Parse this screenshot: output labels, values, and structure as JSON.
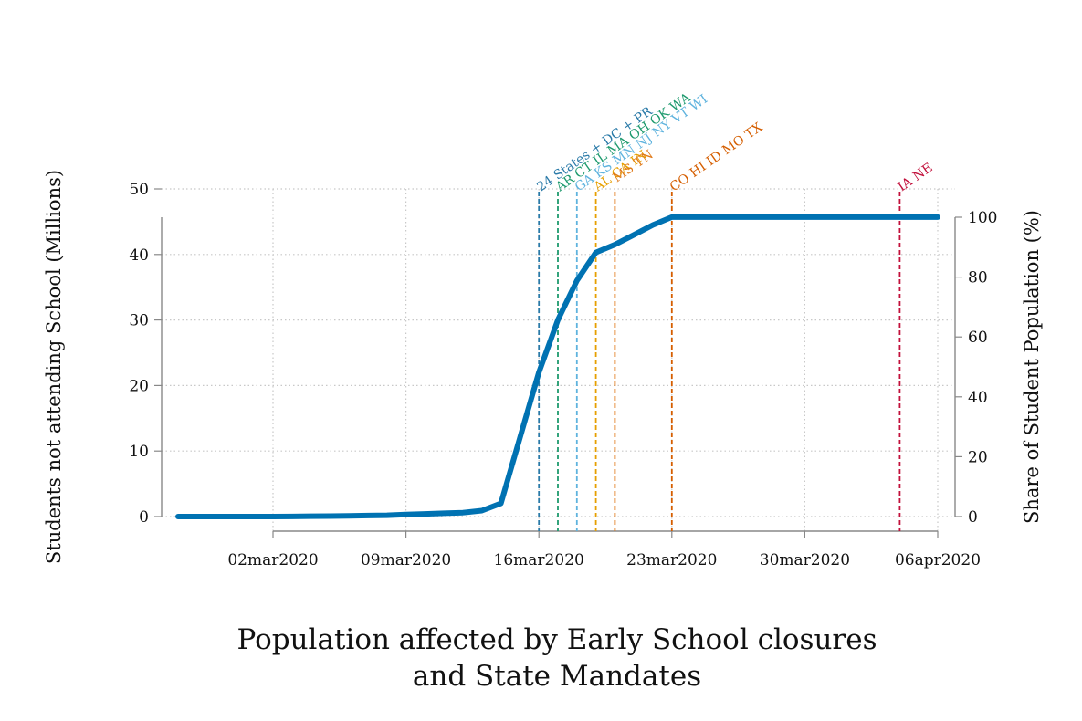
{
  "chart_data": {
    "type": "line",
    "title": "",
    "caption_lines": [
      "Population affected by Early School closures",
      "and State Mandates"
    ],
    "xlabel": "",
    "ylabel": "Students not attending School (Millions)",
    "y2label": "Share of Student Population (%)",
    "x_ticks": [
      "02mar2020",
      "09mar2020",
      "16mar2020",
      "23mar2020",
      "30mar2020",
      "06apr2020"
    ],
    "xlim": [
      "2020-02-26",
      "2020-04-06"
    ],
    "ylim": [
      0,
      50
    ],
    "y_ticks": [
      0,
      10,
      20,
      30,
      40,
      50
    ],
    "y2lim": [
      0,
      100
    ],
    "y2_ticks": [
      0,
      20,
      40,
      60,
      80,
      100
    ],
    "grid": true,
    "series": [
      {
        "color": "#0072b2",
        "x": [
          "2020-02-26",
          "2020-02-27",
          "2020-02-28",
          "2020-02-29",
          "2020-03-01",
          "2020-03-02",
          "2020-03-03",
          "2020-03-04",
          "2020-03-05",
          "2020-03-06",
          "2020-03-07",
          "2020-03-08",
          "2020-03-09",
          "2020-03-10",
          "2020-03-11",
          "2020-03-12",
          "2020-03-13",
          "2020-03-14",
          "2020-03-15",
          "2020-03-16",
          "2020-03-17",
          "2020-03-18",
          "2020-03-19",
          "2020-03-20",
          "2020-03-21",
          "2020-03-22",
          "2020-03-23",
          "2020-03-24",
          "2020-03-25",
          "2020-03-26",
          "2020-03-27",
          "2020-03-28",
          "2020-03-29",
          "2020-03-30",
          "2020-03-31",
          "2020-04-01",
          "2020-04-02",
          "2020-04-03",
          "2020-04-04",
          "2020-04-05",
          "2020-04-06"
        ],
        "values": [
          0,
          0,
          0,
          0,
          0,
          0,
          0.02,
          0.05,
          0.07,
          0.1,
          0.15,
          0.2,
          0.3,
          0.4,
          0.5,
          0.6,
          0.9,
          2.0,
          12,
          22,
          30,
          36,
          40.3,
          41.5,
          43,
          44.5,
          45.7,
          45.7,
          45.7,
          45.7,
          45.7,
          45.7,
          45.7,
          45.7,
          45.7,
          45.7,
          45.7,
          45.7,
          45.7,
          45.7,
          45.7
        ]
      }
    ],
    "annotations": [
      {
        "date": "2020-03-16",
        "label": "24 States + DC + PR",
        "color": "#2a7aa8",
        "level": 0
      },
      {
        "date": "2020-03-17",
        "label": "AR CT IL MA OH OK WA",
        "color": "#1e9a6e",
        "level": 0
      },
      {
        "date": "2020-03-18",
        "label": "GA KS MN NJ NY VT WI",
        "color": "#5fb3de",
        "level": 0
      },
      {
        "date": "2020-03-19",
        "label": "AL CA IN",
        "color": "#e69f00",
        "level": 0
      },
      {
        "date": "2020-03-20",
        "label": "MS TN",
        "color": "#e07a1a",
        "level": 1
      },
      {
        "date": "2020-03-23",
        "label": "CO HI ID MO TX",
        "color": "#d55e00",
        "level": 0
      },
      {
        "date": "2020-04-04",
        "label": "IA NE",
        "color": "#c2103b",
        "level": 0
      }
    ]
  }
}
